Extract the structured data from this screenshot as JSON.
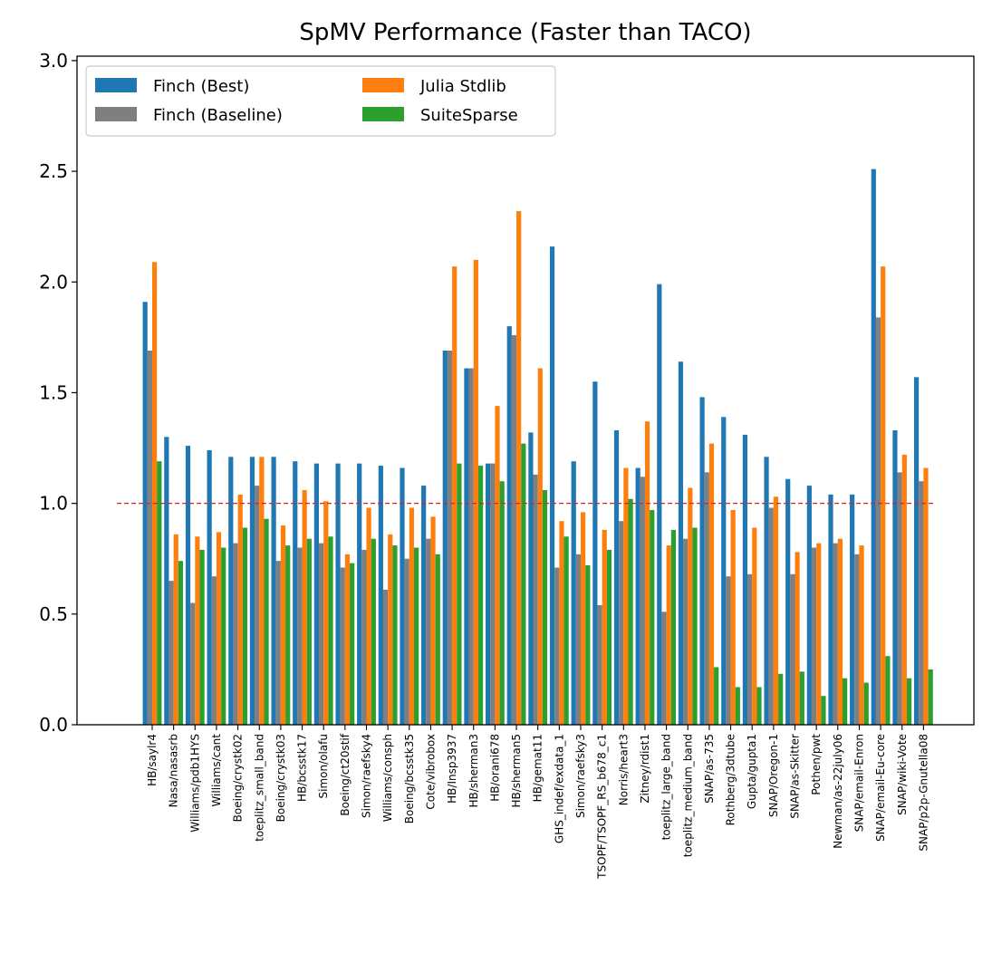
{
  "chart_data": {
    "type": "bar",
    "title": "SpMV Performance (Faster than TACO)",
    "xlabel": "",
    "ylabel": "",
    "ylim": [
      0,
      3.0
    ],
    "yticks": [
      "0.0",
      "0.5",
      "1.0",
      "1.5",
      "2.0",
      "2.5",
      "3.0"
    ],
    "reference_line": 1.0,
    "legend_position": "upper-left",
    "grid": false,
    "categories": [
      "HB/saylr4",
      "Nasa/nasasrb",
      "Williams/pdb1HYS",
      "Williams/cant",
      "Boeing/crystk02",
      "toeplitz_small_band",
      "Boeing/crystk03",
      "HB/bcsstk17",
      "Simon/olafu",
      "Boeing/ct20stif",
      "Simon/raefsky4",
      "Williams/consph",
      "Boeing/bcsstk35",
      "Cote/vibrobox",
      "HB/Insp3937",
      "HB/sherman3",
      "HB/orani678",
      "HB/sherman5",
      "HB/gemat11",
      "GHS_indef/exdata_1",
      "Simon/raefsky3",
      "TSOPF/TSOPF_RS_b678_c1",
      "Norris/heart3",
      "Zitney/rdist1",
      "toeplitz_large_band",
      "toeplitz_medium_band",
      "SNAP/as-735",
      "Rothberg/3dtube",
      "Gupta/gupta1",
      "SNAP/Oregon-1",
      "SNAP/as-Skitter",
      "Pothen/pwt",
      "Newman/as-22july06",
      "SNAP/email-Enron",
      "SNAP/email-Eu-core",
      "SNAP/wiki-Vote",
      "SNAP/p2p-Gnutella08"
    ],
    "series": [
      {
        "name": "Finch (Best)",
        "color": "#1f77b4",
        "values": [
          1.91,
          1.3,
          1.26,
          1.24,
          1.21,
          1.21,
          1.21,
          1.19,
          1.18,
          1.18,
          1.18,
          1.17,
          1.16,
          1.08,
          1.69,
          1.61,
          1.18,
          1.8,
          1.32,
          2.16,
          1.19,
          1.55,
          1.33,
          1.16,
          1.99,
          1.64,
          1.48,
          1.39,
          1.31,
          1.21,
          1.11,
          1.08,
          1.04,
          1.04,
          2.51,
          1.33,
          1.57
        ]
      },
      {
        "name": "Finch (Baseline)",
        "color": "#7f7f7f",
        "values": [
          1.69,
          0.65,
          0.55,
          0.67,
          0.82,
          1.08,
          0.74,
          0.8,
          0.82,
          0.71,
          0.79,
          0.61,
          0.75,
          0.84,
          1.69,
          1.61,
          1.18,
          1.76,
          1.13,
          0.71,
          0.77,
          0.54,
          0.92,
          1.12,
          0.51,
          0.84,
          1.14,
          0.67,
          0.68,
          0.98,
          0.68,
          0.8,
          0.82,
          0.77,
          1.84,
          1.14,
          1.1
        ]
      },
      {
        "name": "Julia Stdlib",
        "color": "#ff7f0e",
        "values": [
          2.09,
          0.86,
          0.85,
          0.87,
          1.04,
          1.21,
          0.9,
          1.06,
          1.01,
          0.77,
          0.98,
          0.86,
          0.98,
          0.94,
          2.07,
          2.1,
          1.44,
          2.32,
          1.61,
          0.92,
          0.96,
          0.88,
          1.16,
          1.37,
          0.81,
          1.07,
          1.27,
          0.97,
          0.89,
          1.03,
          0.78,
          0.82,
          0.84,
          0.81,
          2.07,
          1.22,
          1.16
        ]
      },
      {
        "name": "SuiteSparse",
        "color": "#2ca02c",
        "values": [
          1.19,
          0.74,
          0.79,
          0.8,
          0.89,
          0.93,
          0.81,
          0.84,
          0.85,
          0.73,
          0.84,
          0.81,
          0.8,
          0.77,
          1.18,
          1.17,
          1.1,
          1.27,
          1.06,
          0.85,
          0.72,
          0.79,
          1.02,
          0.97,
          0.88,
          0.89,
          0.26,
          0.17,
          0.17,
          0.23,
          0.24,
          0.13,
          0.21,
          0.19,
          0.31,
          0.21,
          0.25
        ]
      }
    ],
    "legend": {
      "entries": [
        "Finch (Best)",
        "Julia Stdlib",
        "Finch (Baseline)",
        "SuiteSparse"
      ]
    }
  }
}
